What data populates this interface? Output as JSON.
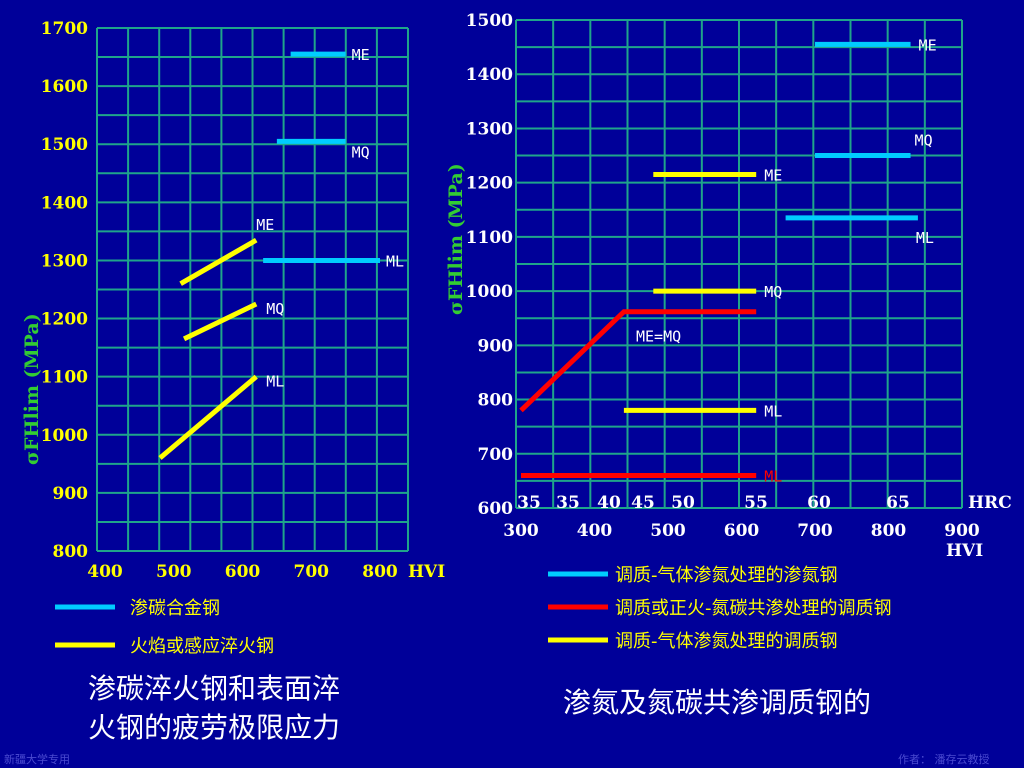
{
  "colors": {
    "background": "#000099",
    "grid": "#1fa58a",
    "carburized_cyan": "#00ccff",
    "flame_yellow": "#ffff00",
    "nitrided_cyan": "#00ccff",
    "carbonitrided_red": "#ff0000",
    "nitrided_yellow": "#ffff00"
  },
  "chart_data": [
    {
      "type": "line",
      "ylabel": "σFHlim (MPa)",
      "ylim": [
        800,
        1700
      ],
      "xlim": [
        400,
        800
      ],
      "y_ticks": [
        "800",
        "900",
        "1000",
        "1100",
        "1200",
        "1300",
        "1400",
        "1500",
        "1600",
        "1700"
      ],
      "x_ticks": [
        "400",
        "500",
        "600",
        "700",
        "800"
      ],
      "x_unit": "HVI",
      "grid": true,
      "series": [
        {
          "group": "carburized",
          "name": "ME",
          "color": "#00ccff",
          "points": [
            [
              670,
              1655
            ],
            [
              750,
              1655
            ]
          ]
        },
        {
          "group": "carburized",
          "name": "MQ",
          "color": "#00ccff",
          "points": [
            [
              650,
              1505
            ],
            [
              750,
              1505
            ]
          ]
        },
        {
          "group": "carburized",
          "name": "ML",
          "color": "#00ccff",
          "points": [
            [
              630,
              1300
            ],
            [
              800,
              1300
            ]
          ]
        },
        {
          "group": "flame",
          "name": "ME",
          "color": "#ffff00",
          "points": [
            [
              510,
              1260
            ],
            [
              620,
              1335
            ]
          ]
        },
        {
          "group": "flame",
          "name": "MQ",
          "color": "#ffff00",
          "points": [
            [
              515,
              1165
            ],
            [
              620,
              1225
            ]
          ]
        },
        {
          "group": "flame",
          "name": "ML",
          "color": "#ffff00",
          "points": [
            [
              480,
              960
            ],
            [
              620,
              1100
            ]
          ]
        }
      ]
    },
    {
      "type": "line",
      "ylabel": "σFHlim (MPa)",
      "ylim": [
        600,
        1500
      ],
      "xlim": [
        300,
        900
      ],
      "y_ticks": [
        "600",
        "700",
        "800",
        "900",
        "1000",
        "1100",
        "1200",
        "1300",
        "1400",
        "1500"
      ],
      "x_ticks": [
        "300",
        "400",
        "500",
        "600",
        "700",
        "800",
        "900"
      ],
      "x_unit": "HVI",
      "hrc_ticks": [
        "35",
        "35",
        "40",
        "45",
        "50",
        "55",
        "60",
        "65"
      ],
      "hrc_unit": "HRC",
      "grid": true,
      "series": [
        {
          "group": "nitrided",
          "name": "ME",
          "color": "#00ccff",
          "points": [
            [
              700,
              1455
            ],
            [
              830,
              1455
            ]
          ]
        },
        {
          "group": "nitrided",
          "name": "MQ",
          "color": "#00ccff",
          "points": [
            [
              700,
              1250
            ],
            [
              830,
              1250
            ]
          ]
        },
        {
          "group": "nitrided",
          "name": "ML",
          "color": "#00ccff",
          "points": [
            [
              660,
              1135
            ],
            [
              840,
              1135
            ]
          ]
        },
        {
          "group": "nitrided_q",
          "name": "ME",
          "color": "#ffff00",
          "points": [
            [
              480,
              1215
            ],
            [
              620,
              1215
            ]
          ]
        },
        {
          "group": "nitrided_q",
          "name": "MQ",
          "color": "#ffff00",
          "points": [
            [
              480,
              1000
            ],
            [
              620,
              1000
            ]
          ]
        },
        {
          "group": "nitrided_q",
          "name": "ML",
          "color": "#ffff00",
          "points": [
            [
              440,
              780
            ],
            [
              620,
              780
            ]
          ]
        },
        {
          "group": "carbonitrided",
          "name": "ME=MQ",
          "color": "#ff0000",
          "points": [
            [
              300,
              780
            ],
            [
              440,
              962
            ],
            [
              620,
              962
            ]
          ]
        },
        {
          "group": "carbonitrided",
          "name": "ML",
          "color": "#ff0000",
          "points": [
            [
              300,
              660
            ],
            [
              620,
              660
            ]
          ]
        }
      ]
    }
  ],
  "legend_left": [
    {
      "label": "渗碳合金钢",
      "color": "#00ccff"
    },
    {
      "label": "火焰或感应淬火钢",
      "color": "#ffff00"
    }
  ],
  "legend_right": [
    {
      "label": "调质-气体渗氮处理的渗氮钢",
      "color": "#00ccff"
    },
    {
      "label": "调质或正火-氮碳共渗处理的调质钢",
      "color": "#ff0000"
    },
    {
      "label": "调质-气体渗氮处理的调质钢",
      "color": "#ffff00"
    }
  ],
  "caption_left_line1": "渗碳淬火钢和表面淬",
  "caption_left_line2": "火钢的疲劳极限应力",
  "caption_right": "渗氮及氮碳共渗调质钢的",
  "footer_left": "新疆大学专用",
  "footer_right": "作者： 潘存云教授"
}
